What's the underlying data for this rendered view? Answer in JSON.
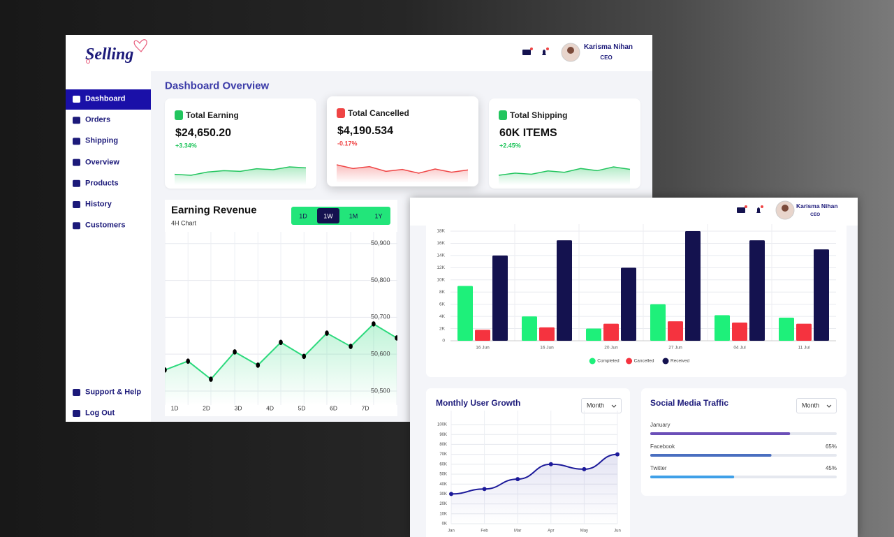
{
  "dashboard": {
    "logo": "Selling",
    "user": {
      "name": "Karisma Nihan",
      "role": "CEO"
    },
    "nav": [
      "Dashboard",
      "Orders",
      "Shipping",
      "Overview",
      "Products",
      "History",
      "Customers"
    ],
    "active_nav": 0,
    "nav_bottom": [
      "Support & Help",
      "Log Out"
    ],
    "page_title": "Dashboard Overview",
    "cards": [
      {
        "title": "Total Earning",
        "value": "$24,650.20",
        "change": "+3.34%",
        "color": "#22c55e",
        "trend": [
          3,
          2.6,
          4,
          4.6,
          4.3,
          5.4,
          5,
          6.2,
          5.8
        ]
      },
      {
        "title": "Total Cancelled",
        "value": "$4,190.534",
        "change": "-0.17%",
        "color": "#ef4444",
        "trend": [
          7,
          6.2,
          6.6,
          5.6,
          6,
          5.2,
          6.1,
          5.4,
          5.9
        ]
      },
      {
        "title": "Total Shipping",
        "value": "60K ITEMS",
        "change": "+2.45%",
        "color": "#22c55e",
        "trend": [
          3.2,
          4,
          3.6,
          4.8,
          4.3,
          5.7,
          4.9,
          6.3,
          5.4
        ]
      }
    ]
  },
  "overlay": {
    "user": {
      "name": "Karisma Nihan",
      "role": "CEO"
    }
  },
  "chart_data": [
    {
      "type": "line",
      "title": "Earning Revenue",
      "subtitle": "4H Chart",
      "buttons": [
        "1D",
        "1W",
        "1M",
        "1Y"
      ],
      "active_button": 1,
      "x": [
        0.69,
        1.42,
        2.14,
        2.89,
        3.62,
        4.34,
        5.07,
        5.79,
        6.54,
        7.26,
        7.99
      ],
      "values": [
        50557,
        50581,
        50532,
        50606,
        50570,
        50632,
        50594,
        50657,
        50621,
        50682,
        50644
      ],
      "xlim": [
        0.69,
        8.01
      ],
      "xticks": [
        {
          "value": 1,
          "label": "1D"
        },
        {
          "value": 2,
          "label": "2D"
        },
        {
          "value": 3,
          "label": "3D"
        },
        {
          "value": 4,
          "label": "4D"
        },
        {
          "value": 5,
          "label": "5D"
        },
        {
          "value": 6,
          "label": "6D"
        },
        {
          "value": 7,
          "label": "7D"
        }
      ],
      "ylim": [
        50462,
        50928
      ],
      "yticks": [
        {
          "value": 50900,
          "label": "50,900"
        },
        {
          "value": 50800,
          "label": "50,800"
        },
        {
          "value": 50700,
          "label": "50,700"
        },
        {
          "value": 50600,
          "label": "50,600"
        },
        {
          "value": 50500,
          "label": "50,500"
        }
      ],
      "color": "#2bd97c",
      "curve": "straight",
      "grid": true
    },
    {
      "type": "bar",
      "categories": [
        "16 Jun",
        "16 Jun",
        "20 Jun",
        "27 Jun",
        "04 Jul",
        "11 Jul"
      ],
      "series": [
        {
          "name": "Completed",
          "color": "#1ef07a",
          "values": [
            9000,
            4000,
            2000,
            6000,
            4200,
            3800
          ]
        },
        {
          "name": "Cancelled",
          "color": "#f5333f",
          "values": [
            1800,
            2200,
            2800,
            3200,
            3000,
            2800
          ]
        },
        {
          "name": "Received",
          "color": "#14124f",
          "values": [
            14000,
            16500,
            12000,
            18000,
            16500,
            15000
          ]
        }
      ],
      "ylim": [
        0,
        18000
      ],
      "yticks": [
        0,
        {
          "value": 2000,
          "label": "2K"
        },
        {
          "value": 4000,
          "label": "4K"
        },
        {
          "value": 6000,
          "label": "6K"
        },
        {
          "value": 8000,
          "label": "8K"
        },
        {
          "value": 10000,
          "label": "10K"
        },
        {
          "value": 12000,
          "label": "12K"
        },
        {
          "value": 14000,
          "label": "14K"
        },
        {
          "value": 16000,
          "label": "16K"
        },
        {
          "value": 18000,
          "label": "18K"
        }
      ],
      "grid": true,
      "legend": "bottom"
    },
    {
      "type": "line",
      "title": "Monthly User Growth",
      "dropdown": "Month",
      "categories": [
        "Jan",
        "Feb",
        "Mar",
        "Apr",
        "May",
        "Jun"
      ],
      "values": [
        30000,
        35000,
        45000,
        60000,
        55000,
        70000
      ],
      "ylim": [
        0,
        100000
      ],
      "yticks": [
        {
          "value": 0,
          "label": "0K"
        },
        {
          "value": 10000,
          "label": "10K"
        },
        {
          "value": 20000,
          "label": "20K"
        },
        {
          "value": 30000,
          "label": "30K"
        },
        {
          "value": 40000,
          "label": "40K"
        },
        {
          "value": 50000,
          "label": "50K"
        },
        {
          "value": 60000,
          "label": "60K"
        },
        {
          "value": 70000,
          "label": "70K"
        },
        {
          "value": 80000,
          "label": "80K"
        },
        {
          "value": 90000,
          "label": "90K"
        },
        {
          "value": 100000,
          "label": "100K"
        }
      ],
      "color": "#1c1a9a",
      "curve": "smooth",
      "grid": true
    },
    {
      "type": "progress",
      "title": "Social Media Traffic",
      "dropdown": "Month",
      "categories": [
        "January",
        "Facebook",
        "Twitter"
      ],
      "values": [
        75,
        65,
        45
      ],
      "value_labels": [
        null,
        "65%",
        "45%"
      ],
      "colors": [
        "#6b4fb8",
        "#4a6fc0",
        "#3fa0e8"
      ],
      "xlim": [
        0,
        100
      ]
    }
  ]
}
